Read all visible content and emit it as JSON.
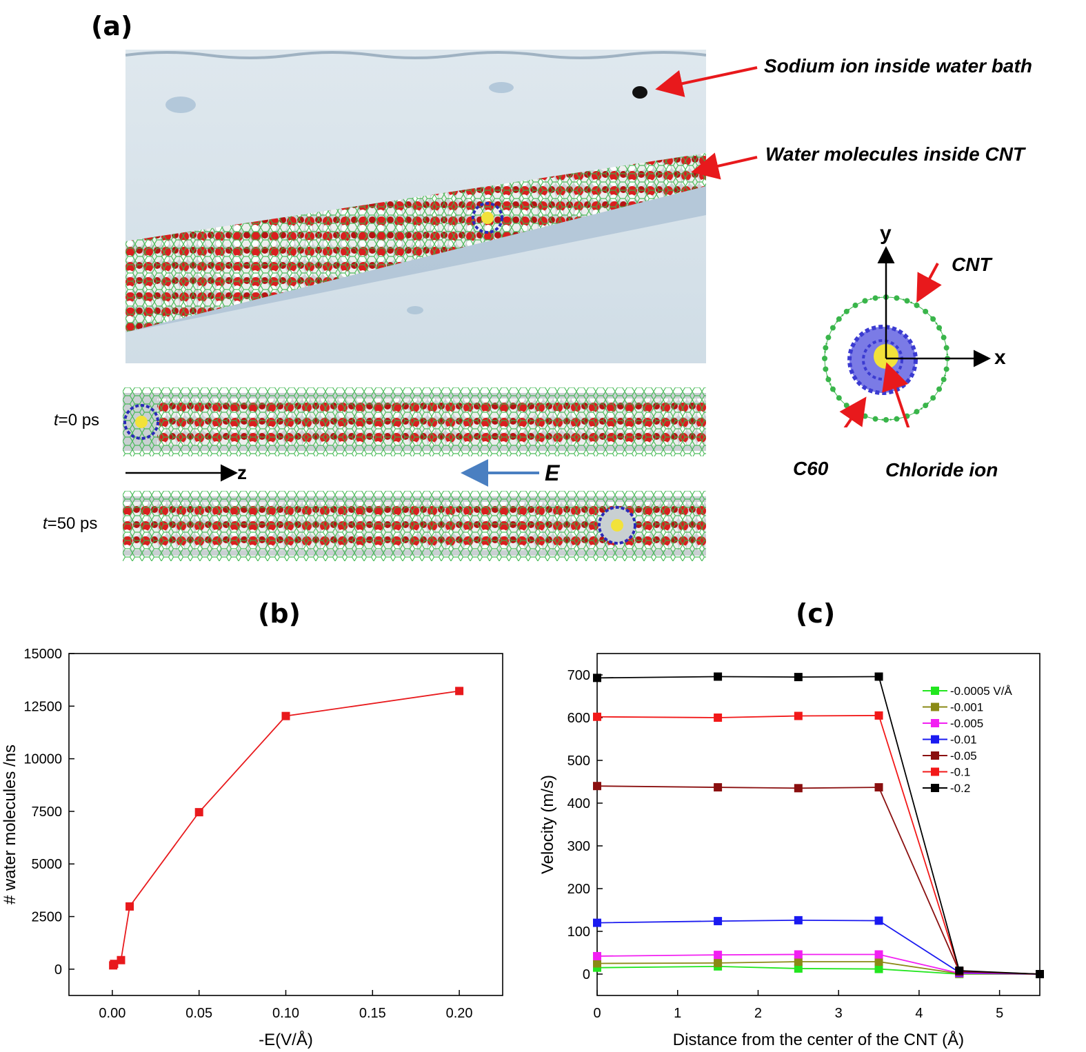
{
  "panels": {
    "a": "(a)",
    "b": "(b)",
    "c": "(c)"
  },
  "annotations": {
    "sodium": "Sodium ion inside water bath",
    "water": "Water molecules inside CNT",
    "cnt": "CNT",
    "c60": "C60",
    "chloride": "Chloride ion",
    "axis_x": "x",
    "axis_y": "y",
    "axis_z": "z",
    "field": "E",
    "t0_var": "t",
    "t0_rest": "=0 ps",
    "t50_var": "t",
    "t50_rest": "=50 ps"
  },
  "colors": {
    "arrow_red": "#e8191c",
    "cnt_green": "#39b54a",
    "c60_blue": "#3b3bd1",
    "ion_yellow": "#f2e23a",
    "field_blue": "#4a7fc1",
    "water_bath": "#d4e1ea"
  },
  "chart_data": [
    {
      "type": "line",
      "xlabel": "-E(V/Å)",
      "ylabel": "# water molecules /ns",
      "xlim": [
        -0.025,
        0.225
      ],
      "ylim": [
        -1250,
        15000
      ],
      "xticks": [
        "0.00",
        "0.05",
        "0.10",
        "0.15",
        "0.20"
      ],
      "xtick_values": [
        0,
        0.05,
        0.1,
        0.15,
        0.2
      ],
      "yticks": [
        "0",
        "2500",
        "5000",
        "7500",
        "10000",
        "12500",
        "15000"
      ],
      "ytick_values": [
        0,
        2500,
        5000,
        7500,
        10000,
        12500,
        15000
      ],
      "series": [
        {
          "color": "#e8191c",
          "x": [
            0.0005,
            0.001,
            0.005,
            0.01,
            0.05,
            0.1,
            0.2
          ],
          "y": [
            180,
            250,
            430,
            2980,
            7460,
            12030,
            13220
          ]
        }
      ]
    },
    {
      "type": "line",
      "xlabel": "Distance from the center of the CNT (Å)",
      "ylabel": "Velocity (m/s)",
      "xlim": [
        0,
        5.5
      ],
      "ylim": [
        -50,
        750
      ],
      "xticks": [
        "0",
        "1",
        "2",
        "3",
        "4",
        "5"
      ],
      "xtick_values": [
        0,
        1,
        2,
        3,
        4,
        5
      ],
      "yticks": [
        "0",
        "100",
        "200",
        "300",
        "400",
        "500",
        "600",
        "700"
      ],
      "ytick_values": [
        0,
        100,
        200,
        300,
        400,
        500,
        600,
        700
      ],
      "legend_position": "top-right",
      "x": [
        0,
        1.5,
        2.5,
        3.5,
        4.5,
        5.5
      ],
      "series": [
        {
          "name": "-0.0005 V/Å",
          "color": "#22e61f",
          "values": [
            15,
            18,
            13,
            12,
            0,
            0
          ]
        },
        {
          "name": "-0.001",
          "color": "#8a8a15",
          "values": [
            25,
            26,
            29,
            29,
            1,
            0
          ]
        },
        {
          "name": "-0.005",
          "color": "#f21ff2",
          "values": [
            42,
            45,
            46,
            46,
            2,
            0
          ]
        },
        {
          "name": "-0.01",
          "color": "#1a1af0",
          "values": [
            120,
            124,
            126,
            125,
            4,
            0
          ]
        },
        {
          "name": "-0.05",
          "color": "#8a0f0f",
          "values": [
            440,
            437,
            435,
            437,
            6,
            0
          ]
        },
        {
          "name": "-0.1",
          "color": "#f21818",
          "values": [
            602,
            600,
            604,
            605,
            7,
            0
          ]
        },
        {
          "name": "-0.2",
          "color": "#000000",
          "values": [
            693,
            696,
            695,
            696,
            8,
            0
          ]
        }
      ]
    }
  ]
}
